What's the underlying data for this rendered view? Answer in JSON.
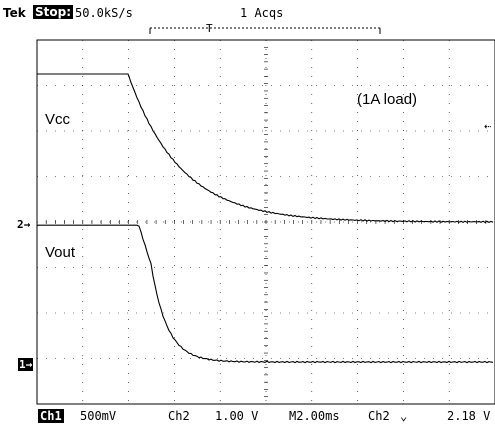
{
  "header": {
    "brand": "Tek",
    "state": "Stop:",
    "sample_rate": "50.0kS/s",
    "acquisitions": "1 Acqs"
  },
  "labels": {
    "vcc": "Vcc",
    "vout": "Vout",
    "load": "(1A load)"
  },
  "markers": {
    "ch2": "2",
    "ch1": "1"
  },
  "footer": {
    "ch1_label": "Ch1",
    "ch1_scale": "500mV",
    "ch2_label": "Ch2",
    "ch2_scale": "1.00 V",
    "timebase": "M2.00ms",
    "trigger_source": "Ch2",
    "trigger_slope": "⌄",
    "trigger_level": "2.18 V"
  },
  "colors": {
    "trace": "#000000",
    "background": "#ffffff"
  }
}
